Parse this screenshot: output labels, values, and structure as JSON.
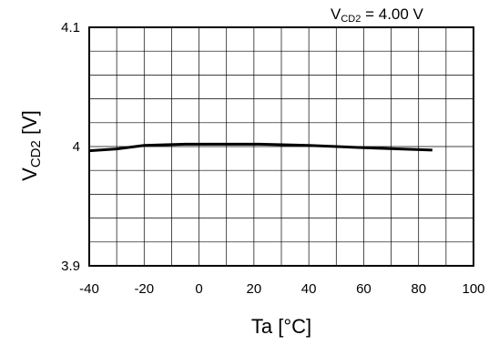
{
  "chart_data": {
    "type": "line",
    "condition_label": {
      "prefix": "V",
      "sub": "CD2",
      "suffix": " = 4.00 V"
    },
    "xlabel": "Ta [°C]",
    "ylabel": {
      "prefix": "V",
      "sub": "CD2",
      "suffix": " [V]"
    },
    "xlim": [
      -40,
      100
    ],
    "ylim": [
      3.9,
      4.1
    ],
    "x_major_ticks": [
      -40,
      -20,
      0,
      20,
      40,
      60,
      80,
      100
    ],
    "x_minor_step": 10,
    "x_tick_labels": [
      "-40",
      "-20",
      "0",
      "20",
      "40",
      "60",
      "80",
      "100"
    ],
    "y_tick_labels": [
      {
        "value": 3.9,
        "label": "3.9"
      },
      {
        "value": 4.0,
        "label": "4"
      },
      {
        "value": 4.1,
        "label": "4.1"
      }
    ],
    "y_grid_step": 0.02,
    "grid": true,
    "series": [
      {
        "x": [
          -40,
          -30,
          -20,
          -5,
          0,
          10,
          22,
          40,
          60,
          85
        ],
        "y": [
          3.9965,
          3.998,
          4.001,
          4.002,
          4.002,
          4.002,
          4.002,
          4.001,
          3.999,
          3.997
        ],
        "color": "#000000"
      }
    ]
  }
}
